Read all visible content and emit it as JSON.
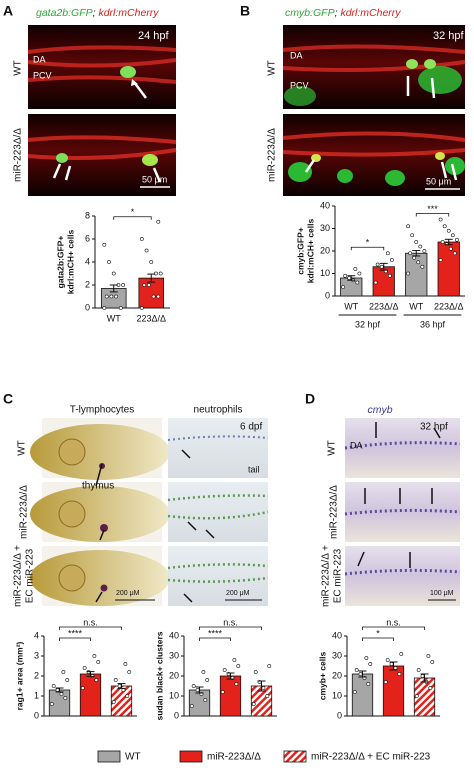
{
  "panels": [
    {
      "letter": "A",
      "title_green": "gata2b:GFP",
      "title_sep": "; ",
      "title_red": "kdrl:mCherry",
      "rows": [
        [
          "WT"
        ],
        [
          "miR-223Δ/Δ"
        ]
      ],
      "image_labels": [
        "24 hpf",
        "DA",
        "PCV",
        "50 μm"
      ]
    },
    {
      "letter": "B",
      "title_green": "cmyb:GFP",
      "title_sep": "; ",
      "title_red": "kdrl:mCherry",
      "rows": [
        [
          "WT"
        ],
        [
          "miR-223Δ/Δ"
        ]
      ],
      "image_labels": [
        "32 hpf",
        "DA",
        "PCV",
        "50 μm"
      ]
    },
    {
      "letter": "C",
      "columns": [
        "T-lymphocytes",
        "neutrophils"
      ],
      "rows": [
        [
          "WT"
        ],
        [
          "miR-223Δ/Δ"
        ],
        [
          "miR-223Δ/Δ +",
          "EC miR-223"
        ]
      ],
      "image_labels": [
        "thymus",
        "6 dpf",
        "tail",
        "200 μM",
        "200 μM"
      ]
    },
    {
      "letter": "D",
      "title": "cmyb",
      "rows": [
        [
          "WT"
        ],
        [
          "miR-223Δ/Δ"
        ],
        [
          "miR-223Δ/Δ +",
          "EC miR-223"
        ]
      ],
      "image_labels": [
        "32 hpf",
        "DA",
        "100 μM"
      ]
    }
  ],
  "chart_data": [
    {
      "type": "bar",
      "ylabel": [
        "gata2b:GFP+",
        "kdrl:mCH+ cells"
      ],
      "categories": [
        "WT",
        "223Δ/Δ"
      ],
      "values": [
        1.7,
        2.6
      ],
      "errors": [
        0.3,
        0.35
      ],
      "points": [
        [
          0,
          0,
          1,
          1,
          1,
          2,
          2,
          3,
          4,
          5.5
        ],
        [
          0,
          1,
          1,
          2,
          2,
          3,
          3,
          4,
          5,
          6,
          7.5
        ]
      ],
      "colors": [
        "#a6a6a6",
        "#e3231b"
      ],
      "hatched": [
        false,
        false
      ],
      "ylim": [
        0,
        8
      ],
      "yticks": [
        0,
        2,
        4,
        6,
        8
      ],
      "significance": [
        {
          "pair": [
            0,
            1
          ],
          "label": "*"
        }
      ]
    },
    {
      "type": "bar",
      "ylabel": [
        "cmyb:GFP+",
        "kdrl:mCH+ cells"
      ],
      "categories": [
        "WT",
        "223Δ/Δ",
        "WT",
        "223Δ/Δ"
      ],
      "values": [
        8,
        13,
        19,
        24
      ],
      "errors": [
        1,
        1.5,
        1.2,
        1.2
      ],
      "points": [
        [
          4,
          6,
          7,
          8,
          9,
          10,
          12
        ],
        [
          6,
          9,
          11,
          13,
          14,
          16,
          19
        ],
        [
          10,
          13,
          15,
          17,
          19,
          20,
          22,
          24,
          27,
          31
        ],
        [
          16,
          19,
          21,
          23,
          24,
          25,
          27,
          29,
          31,
          34
        ]
      ],
      "colors": [
        "#a6a6a6",
        "#e3231b",
        "#a6a6a6",
        "#e3231b"
      ],
      "hatched": [
        false,
        false,
        false,
        false
      ],
      "ylim": [
        0,
        40
      ],
      "yticks": [
        0,
        10,
        20,
        30,
        40
      ],
      "groups": [
        {
          "label": "32 hpf",
          "members": [
            0,
            1
          ]
        },
        {
          "label": "36 hpf",
          "members": [
            2,
            3
          ]
        }
      ],
      "significance": [
        {
          "pair": [
            0,
            1
          ],
          "label": "*"
        },
        {
          "pair": [
            2,
            3
          ],
          "label": "***"
        }
      ]
    },
    {
      "type": "bar",
      "ylabel": [
        "rag1+ area (mm²)"
      ],
      "categories": [
        null,
        null,
        null
      ],
      "values": [
        1.3,
        2.1,
        1.5
      ],
      "errors": [
        0.1,
        0.12,
        0.12
      ],
      "points": [
        [
          0.6,
          0.9,
          1.1,
          1.3,
          1.5,
          1.8,
          2.2
        ],
        [
          1.4,
          1.8,
          2.0,
          2.2,
          2.4,
          2.7,
          3.0
        ],
        [
          0.7,
          1.0,
          1.3,
          1.5,
          1.8,
          2.2,
          2.6
        ]
      ],
      "colors": [
        "#a6a6a6",
        "#e3231b",
        "#e3231b"
      ],
      "hatched": [
        false,
        false,
        true
      ],
      "ylim": [
        0,
        4
      ],
      "yticks": [
        0,
        1,
        2,
        3,
        4
      ],
      "significance": [
        {
          "pair": [
            0,
            1
          ],
          "label": "****"
        },
        {
          "pair": [
            0,
            2
          ],
          "label": "n.s."
        }
      ]
    },
    {
      "type": "bar",
      "ylabel": [
        "sudan black+ clusters"
      ],
      "categories": [
        null,
        null,
        null
      ],
      "values": [
        13,
        20,
        15
      ],
      "errors": [
        1.5,
        1.5,
        2.5
      ],
      "points": [
        [
          5,
          8,
          11,
          13,
          15,
          18,
          22
        ],
        [
          12,
          16,
          19,
          21,
          23,
          25,
          28
        ],
        [
          6,
          10,
          14,
          17,
          22,
          25
        ]
      ],
      "colors": [
        "#a6a6a6",
        "#e3231b",
        "#e3231b"
      ],
      "hatched": [
        false,
        false,
        true
      ],
      "ylim": [
        0,
        40
      ],
      "yticks": [
        0,
        10,
        20,
        30,
        40
      ],
      "significance": [
        {
          "pair": [
            0,
            1
          ],
          "label": "****"
        },
        {
          "pair": [
            0,
            2
          ],
          "label": "n.s."
        }
      ]
    },
    {
      "type": "bar",
      "ylabel": [
        "cmyb+ cells"
      ],
      "categories": [
        null,
        null,
        null
      ],
      "values": [
        21,
        25,
        19
      ],
      "errors": [
        1.5,
        2,
        2
      ],
      "points": [
        [
          12,
          16,
          19,
          21,
          23,
          26,
          29
        ],
        [
          17,
          21,
          24,
          26,
          28,
          31
        ],
        [
          10,
          14,
          17,
          20,
          23,
          27,
          30
        ]
      ],
      "colors": [
        "#a6a6a6",
        "#e3231b",
        "#e3231b"
      ],
      "hatched": [
        false,
        false,
        true
      ],
      "ylim": [
        0,
        40
      ],
      "yticks": [
        0,
        10,
        20,
        30,
        40
      ],
      "significance": [
        {
          "pair": [
            0,
            1
          ],
          "label": "*"
        },
        {
          "pair": [
            0,
            2
          ],
          "label": "n.s."
        }
      ]
    }
  ],
  "legend": {
    "items": [
      {
        "name": "WT",
        "color": "#a6a6a6",
        "hatched": false
      },
      {
        "name": "miR-223Δ/Δ",
        "color": "#e3231b",
        "hatched": false
      },
      {
        "name": "miR-223Δ/Δ + EC miR-223",
        "color": "#e3231b",
        "hatched": true
      }
    ]
  }
}
